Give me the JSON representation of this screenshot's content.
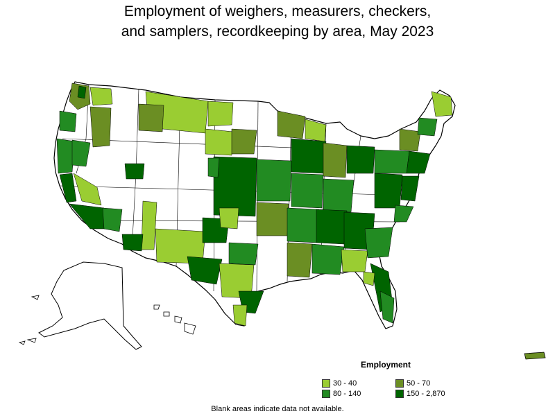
{
  "title_lines": [
    "Employment of weighers, measurers, checkers,",
    "and samplers, recordkeeping by area, May 2023"
  ],
  "legend": {
    "title": "Employment",
    "items": [
      {
        "label": "30 - 40",
        "color": "#9acd32"
      },
      {
        "label": "50 - 70",
        "color": "#6b8e23"
      },
      {
        "label": "80 - 140",
        "color": "#228b22"
      },
      {
        "label": "150 - 2,870",
        "color": "#006400"
      }
    ]
  },
  "footnote": "Blank areas indicate data not available.",
  "colors": {
    "outline": "#000000",
    "no_data": "#ffffff",
    "boundary": "#000000"
  }
}
